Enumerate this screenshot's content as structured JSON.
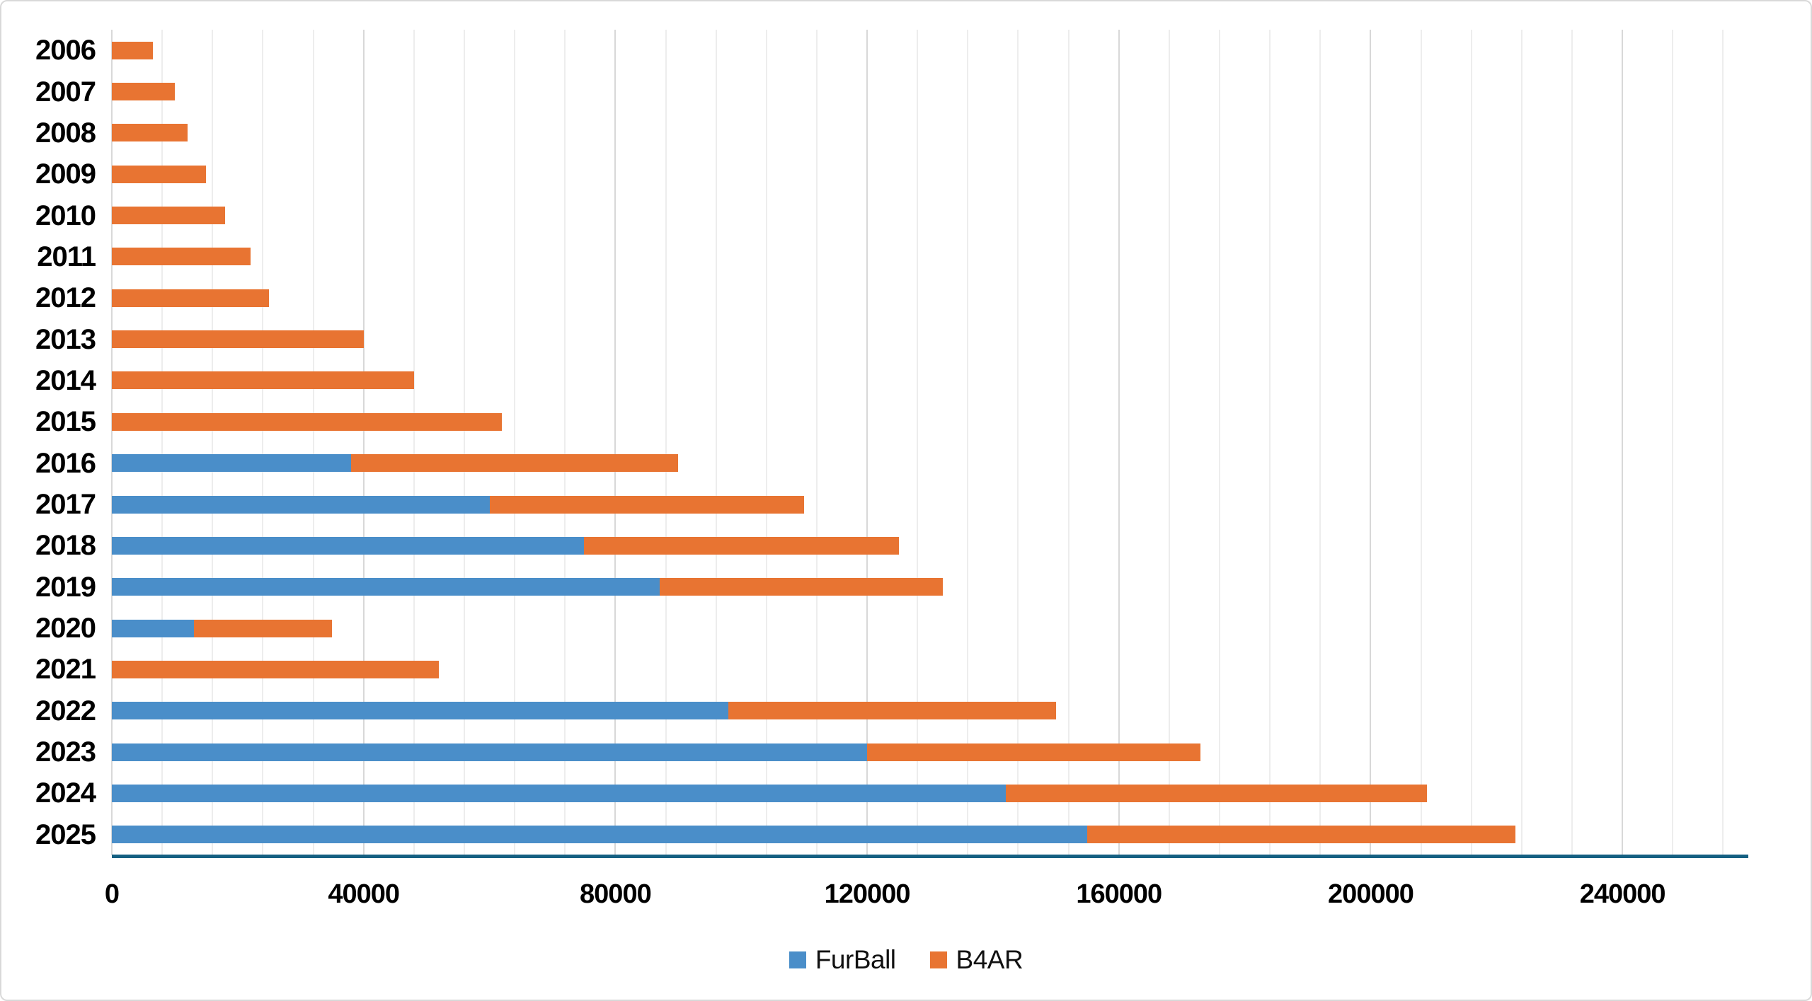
{
  "chart_data": {
    "type": "bar",
    "orientation": "horizontal",
    "stacked": true,
    "title": "",
    "xlabel": "",
    "ylabel": "",
    "categories": [
      "2006",
      "2007",
      "2008",
      "2009",
      "2010",
      "2011",
      "2012",
      "2013",
      "2014",
      "2015",
      "2016",
      "2017",
      "2018",
      "2019",
      "2020",
      "2021",
      "2022",
      "2023",
      "2024",
      "2025"
    ],
    "series": [
      {
        "name": "FurBall",
        "color": "#4a8ec9",
        "values": [
          0,
          0,
          0,
          0,
          0,
          0,
          0,
          0,
          0,
          0,
          38000,
          60000,
          75000,
          87000,
          13000,
          0,
          98000,
          120000,
          142000,
          155000
        ]
      },
      {
        "name": "B4AR",
        "color": "#e87432",
        "values": [
          6500,
          10000,
          12000,
          15000,
          18000,
          22000,
          25000,
          40000,
          48000,
          62000,
          52000,
          50000,
          50000,
          45000,
          22000,
          52000,
          52000,
          53000,
          67000,
          68000
        ]
      }
    ],
    "axis": {
      "xmin": 0,
      "xmax": 260000,
      "tick_interval": 40000,
      "minor_gridline_interval": 8000,
      "tick_labels": [
        "0",
        "40000",
        "80000",
        "120000",
        "160000",
        "200000",
        "240000"
      ]
    },
    "legend": {
      "position": "bottom",
      "items": [
        "FurBall",
        "B4AR"
      ]
    },
    "grid": true
  },
  "colors": {
    "furball_blue": "#4a8ec9",
    "b4ar_orange": "#e87432",
    "axis_line_teal": "#156082",
    "minor_gridline": "#ededed",
    "major_gridline": "#d8d8d8",
    "label_text": "#000000",
    "canvas_border": "#d9d9d9"
  }
}
